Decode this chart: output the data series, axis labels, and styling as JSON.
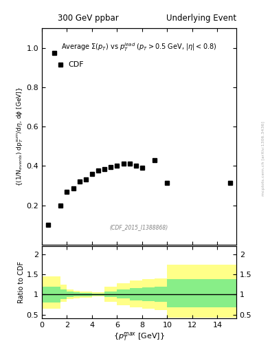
{
  "title_left": "300 GeV ppbar",
  "title_right": "Underlying Event",
  "main_title": "Average $\\Sigma(p_T)$ vs $p_T^{lead}$ ($p_T > 0.5$ GeV, $|\\eta| < 0.8$)",
  "legend_label": "CDF",
  "watermark": "(CDF_2015_I1388868)",
  "side_text": "mcplots.cern.ch [arXiv:1306.3436]",
  "ylabel_main": "{(1/N$_{events}$) dp$_T^{sum}$/d$\\eta$, d$\\phi$ [GeV]}",
  "ylabel_ratio": "Ratio to CDF",
  "xlabel": "{$p_T^{max}$ [GeV]}",
  "data_x": [
    0.5,
    1.0,
    1.5,
    2.0,
    2.5,
    3.0,
    3.5,
    4.0,
    4.5,
    5.0,
    5.5,
    6.0,
    6.5,
    7.0,
    7.5,
    8.0,
    9.0,
    10.0,
    15.0
  ],
  "data_y": [
    0.1,
    0.975,
    0.2,
    0.27,
    0.285,
    0.32,
    0.33,
    0.36,
    0.375,
    0.385,
    0.395,
    0.4,
    0.41,
    0.41,
    0.4,
    0.39,
    0.43,
    0.315,
    0.315
  ],
  "ylim_main": [
    0.0,
    1.1
  ],
  "ylim_ratio": [
    0.4,
    2.2
  ],
  "xlim": [
    0.0,
    15.5
  ],
  "yticks_main": [
    0.2,
    0.4,
    0.6,
    0.8,
    1.0
  ],
  "yticks_ratio": [
    0.5,
    1.0,
    1.5,
    2.0
  ],
  "ratio_yellow_x": [
    0.0,
    1.0,
    1.5,
    2.0,
    2.5,
    3.0,
    4.0,
    5.0,
    6.0,
    7.0,
    8.0,
    9.0,
    10.0,
    15.5
  ],
  "ratio_yellow_top": [
    1.45,
    1.45,
    1.25,
    1.13,
    1.09,
    1.07,
    1.05,
    1.2,
    1.28,
    1.35,
    1.38,
    1.4,
    1.75,
    1.75
  ],
  "ratio_yellow_bot": [
    0.65,
    0.65,
    0.82,
    0.88,
    0.9,
    0.92,
    0.95,
    0.82,
    0.74,
    0.68,
    0.65,
    0.62,
    0.42,
    0.42
  ],
  "ratio_green_x": [
    0.0,
    1.0,
    1.5,
    2.0,
    2.5,
    3.0,
    4.0,
    5.0,
    6.0,
    7.0,
    8.0,
    9.0,
    10.0,
    15.5
  ],
  "ratio_green_top": [
    1.2,
    1.2,
    1.12,
    1.07,
    1.05,
    1.04,
    1.025,
    1.08,
    1.12,
    1.16,
    1.18,
    1.2,
    1.38,
    1.38
  ],
  "ratio_green_bot": [
    0.8,
    0.8,
    0.88,
    0.93,
    0.95,
    0.96,
    0.975,
    0.93,
    0.9,
    0.86,
    0.84,
    0.82,
    0.68,
    0.68
  ],
  "color_yellow": "#ffff88",
  "color_green": "#88ee88",
  "marker_color": "black",
  "marker": "s",
  "marker_size": 4,
  "bg_color": "white"
}
